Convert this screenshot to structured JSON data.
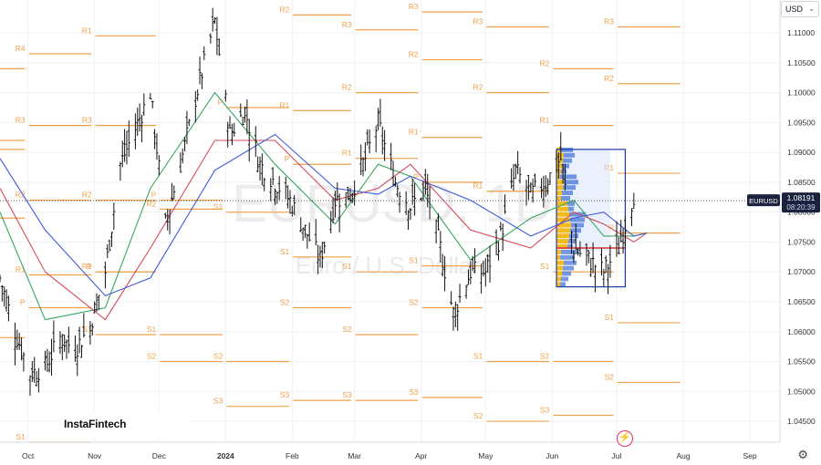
{
  "currency_select": {
    "value": "USD"
  },
  "brand": {
    "logo_text": "InstaFintech"
  },
  "watermark": {
    "symbol": "EURUSD, 1D",
    "name": "Euro / U.S. Dollar"
  },
  "icons": {
    "settings": "gear-icon",
    "alert": "lightning-icon",
    "dropdown": "chevron-down-icon"
  },
  "colors": {
    "pivot": "#f0a04b",
    "candle": "#111111",
    "ma_blue": "#3f5bd8",
    "ma_red": "#d34a5a",
    "ma_green": "#3aa760",
    "volume_profile_up": "#3b6ed6",
    "volume_profile_down": "#f5b400"
  },
  "chart_data": {
    "type": "candlestick",
    "symbol": "EURUSD",
    "timeframe": "1D",
    "y_axis": {
      "ticks": [
        "1.11000",
        "1.10500",
        "1.10000",
        "1.09500",
        "1.09000",
        "1.08500",
        "1.08000",
        "1.07500",
        "1.07000",
        "1.06500",
        "1.06000",
        "1.05500",
        "1.05000",
        "1.04500"
      ],
      "range": [
        1.0415,
        1.1155
      ]
    },
    "x_axis": {
      "ticks": [
        "Oct",
        "Nov",
        "Dec",
        "2024",
        "Feb",
        "Mar",
        "Apr",
        "May",
        "Jun",
        "Jul",
        "Aug",
        "Sep"
      ],
      "range": [
        "2023-09-18",
        "2024-09-15"
      ]
    },
    "last_price": {
      "symbol_label": "EURUSD",
      "price": "1.08191",
      "countdown": "08:20:39"
    },
    "close_path": [
      [
        "2023-09-18",
        1.069
      ],
      [
        "2023-09-25",
        1.06
      ],
      [
        "2023-10-02",
        1.053
      ],
      [
        "2023-10-09",
        1.054
      ],
      [
        "2023-10-16",
        1.059
      ],
      [
        "2023-10-23",
        1.057
      ],
      [
        "2023-10-30",
        1.061
      ],
      [
        "2023-11-06",
        1.07
      ],
      [
        "2023-11-13",
        1.088
      ],
      [
        "2023-11-20",
        1.094
      ],
      [
        "2023-11-27",
        1.1
      ],
      [
        "2023-12-04",
        1.078
      ],
      [
        "2023-12-11",
        1.088
      ],
      [
        "2023-12-18",
        1.099
      ],
      [
        "2023-12-27",
        1.112
      ],
      [
        "2024-01-03",
        1.093
      ],
      [
        "2024-01-10",
        1.097
      ],
      [
        "2024-01-17",
        1.088
      ],
      [
        "2024-01-24",
        1.085
      ],
      [
        "2024-01-31",
        1.082
      ],
      [
        "2024-02-07",
        1.077
      ],
      [
        "2024-02-14",
        1.072
      ],
      [
        "2024-02-21",
        1.082
      ],
      [
        "2024-02-28",
        1.083
      ],
      [
        "2024-03-06",
        1.089
      ],
      [
        "2024-03-12",
        1.095
      ],
      [
        "2024-03-20",
        1.085
      ],
      [
        "2024-03-27",
        1.081
      ],
      [
        "2024-04-03",
        1.084
      ],
      [
        "2024-04-10",
        1.074
      ],
      [
        "2024-04-16",
        1.063
      ],
      [
        "2024-04-24",
        1.07
      ],
      [
        "2024-05-01",
        1.07
      ],
      [
        "2024-05-08",
        1.076
      ],
      [
        "2024-05-15",
        1.087
      ],
      [
        "2024-05-22",
        1.083
      ],
      [
        "2024-05-29",
        1.085
      ],
      [
        "2024-06-05",
        1.089
      ],
      [
        "2024-06-11",
        1.074
      ],
      [
        "2024-06-18",
        1.072
      ],
      [
        "2024-06-25",
        1.07
      ],
      [
        "2024-07-02",
        1.074
      ],
      [
        "2024-07-09",
        1.083
      ]
    ],
    "moving_averages": [
      {
        "color_key": "ma_green",
        "path": [
          [
            "2023-09-18",
            1.08
          ],
          [
            "2023-10-09",
            1.062
          ],
          [
            "2023-11-06",
            1.064
          ],
          [
            "2023-11-27",
            1.084
          ],
          [
            "2023-12-27",
            1.1
          ],
          [
            "2024-01-24",
            1.088
          ],
          [
            "2024-02-21",
            1.078
          ],
          [
            "2024-03-12",
            1.088
          ],
          [
            "2024-03-27",
            1.086
          ],
          [
            "2024-04-24",
            1.072
          ],
          [
            "2024-05-22",
            1.079
          ],
          [
            "2024-06-11",
            1.082
          ],
          [
            "2024-06-25",
            1.076
          ],
          [
            "2024-07-09",
            1.076
          ],
          [
            "2024-07-15",
            1.0765
          ]
        ]
      },
      {
        "color_key": "ma_red",
        "path": [
          [
            "2023-09-18",
            1.084
          ],
          [
            "2023-10-09",
            1.07
          ],
          [
            "2023-11-06",
            1.062
          ],
          [
            "2023-11-27",
            1.074
          ],
          [
            "2023-12-27",
            1.092
          ],
          [
            "2024-01-24",
            1.092
          ],
          [
            "2024-02-21",
            1.082
          ],
          [
            "2024-03-12",
            1.084
          ],
          [
            "2024-03-27",
            1.088
          ],
          [
            "2024-04-24",
            1.077
          ],
          [
            "2024-05-22",
            1.074
          ],
          [
            "2024-06-11",
            1.08
          ],
          [
            "2024-06-25",
            1.078
          ],
          [
            "2024-07-09",
            1.075
          ],
          [
            "2024-07-15",
            1.0765
          ]
        ]
      },
      {
        "color_key": "ma_blue",
        "path": [
          [
            "2023-09-18",
            1.089
          ],
          [
            "2023-10-09",
            1.077
          ],
          [
            "2023-11-06",
            1.066
          ],
          [
            "2023-11-27",
            1.069
          ],
          [
            "2023-12-27",
            1.087
          ],
          [
            "2024-01-24",
            1.093
          ],
          [
            "2024-02-21",
            1.084
          ],
          [
            "2024-03-12",
            1.083
          ],
          [
            "2024-03-27",
            1.086
          ],
          [
            "2024-04-24",
            1.082
          ],
          [
            "2024-05-22",
            1.076
          ],
          [
            "2024-06-11",
            1.079
          ],
          [
            "2024-06-25",
            1.08
          ],
          [
            "2024-07-09",
            1.076
          ],
          [
            "2024-07-15",
            1.0765
          ]
        ]
      }
    ],
    "pivot_periods": [
      {
        "start": "2023-09-01",
        "end": "2023-09-30",
        "levels": [
          {
            "label": "R2",
            "price": 1.104
          },
          {
            "label": "P",
            "price": 1.0905
          },
          {
            "label": "R1",
            "price": 1.092
          },
          {
            "label": "P",
            "price": 1.079
          },
          {
            "label": "S1",
            "price": 1.059
          }
        ]
      },
      {
        "start": "2023-10-01",
        "end": "2023-10-31",
        "levels": [
          {
            "label": "R4",
            "price": 1.1065
          },
          {
            "label": "R3",
            "price": 1.0945
          },
          {
            "label": "R2",
            "price": 1.082
          },
          {
            "label": "R1",
            "price": 1.0695
          },
          {
            "label": "P",
            "price": 1.064
          },
          {
            "label": "S1",
            "price": 1.0415
          }
        ]
      },
      {
        "start": "2023-11-01",
        "end": "2023-11-30",
        "levels": [
          {
            "label": "R1",
            "price": 1.1095
          },
          {
            "label": "R3",
            "price": 1.0945
          },
          {
            "label": "R2",
            "price": 1.082
          },
          {
            "label": "P",
            "price": 1.07
          },
          {
            "label": "R1",
            "price": 1.07
          },
          {
            "label": "S1",
            "price": 1.0595
          }
        ]
      },
      {
        "start": "2023-12-01",
        "end": "2023-12-31",
        "levels": [
          {
            "label": "P",
            "price": 1.082
          },
          {
            "label": "S1",
            "price": 1.0595
          },
          {
            "label": "S2",
            "price": 1.055
          },
          {
            "label": "R2",
            "price": 1.0805
          }
        ]
      },
      {
        "start": "2024-01-01",
        "end": "2024-01-31",
        "levels": [
          {
            "label": "P",
            "price": 1.0975
          },
          {
            "label": "S1",
            "price": 1.08
          },
          {
            "label": "S2",
            "price": 1.055
          },
          {
            "label": "S3",
            "price": 1.0475
          }
        ]
      },
      {
        "start": "2024-02-01",
        "end": "2024-02-29",
        "levels": [
          {
            "label": "R2",
            "price": 1.113
          },
          {
            "label": "R1",
            "price": 1.097
          },
          {
            "label": "P",
            "price": 1.088
          },
          {
            "label": "S1",
            "price": 1.0725
          },
          {
            "label": "S2",
            "price": 1.064
          },
          {
            "label": "S3",
            "price": 1.0485
          }
        ]
      },
      {
        "start": "2024-03-01",
        "end": "2024-03-31",
        "levels": [
          {
            "label": "R3",
            "price": 1.1105
          },
          {
            "label": "R2",
            "price": 1.1
          },
          {
            "label": "R1",
            "price": 1.089
          },
          {
            "label": "S1",
            "price": 1.07
          },
          {
            "label": "S2",
            "price": 1.0595
          },
          {
            "label": "S3",
            "price": 1.0485
          }
        ]
      },
      {
        "start": "2024-04-01",
        "end": "2024-04-30",
        "levels": [
          {
            "label": "R3",
            "price": 1.1135
          },
          {
            "label": "R2",
            "price": 1.1055
          },
          {
            "label": "R1",
            "price": 1.0925
          },
          {
            "label": "P",
            "price": 1.085
          },
          {
            "label": "S1",
            "price": 1.071
          },
          {
            "label": "S2",
            "price": 1.064
          },
          {
            "label": "S3",
            "price": 1.049
          }
        ]
      },
      {
        "start": "2024-05-01",
        "end": "2024-05-31",
        "levels": [
          {
            "label": "R3",
            "price": 1.111
          },
          {
            "label": "R2",
            "price": 1.1
          },
          {
            "label": "R1",
            "price": 1.0835
          },
          {
            "label": "S1",
            "price": 1.055
          },
          {
            "label": "S2",
            "price": 1.045
          }
        ]
      },
      {
        "start": "2024-06-01",
        "end": "2024-06-30",
        "levels": [
          {
            "label": "R2",
            "price": 1.104
          },
          {
            "label": "R1",
            "price": 1.0945
          },
          {
            "label": "S1",
            "price": 1.07
          },
          {
            "label": "S2",
            "price": 1.055
          },
          {
            "label": "S3",
            "price": 1.046
          }
        ]
      },
      {
        "start": "2024-07-01",
        "end": "2024-07-31",
        "levels": [
          {
            "label": "R3",
            "price": 1.111
          },
          {
            "label": "R2",
            "price": 1.1015
          },
          {
            "label": "R1",
            "price": 1.0865
          },
          {
            "label": "P",
            "price": 1.0765
          },
          {
            "label": "S1",
            "price": 1.0615
          },
          {
            "label": "S2",
            "price": 1.0515
          }
        ]
      }
    ],
    "grid": true,
    "volume_profile": true,
    "legend": "none"
  }
}
